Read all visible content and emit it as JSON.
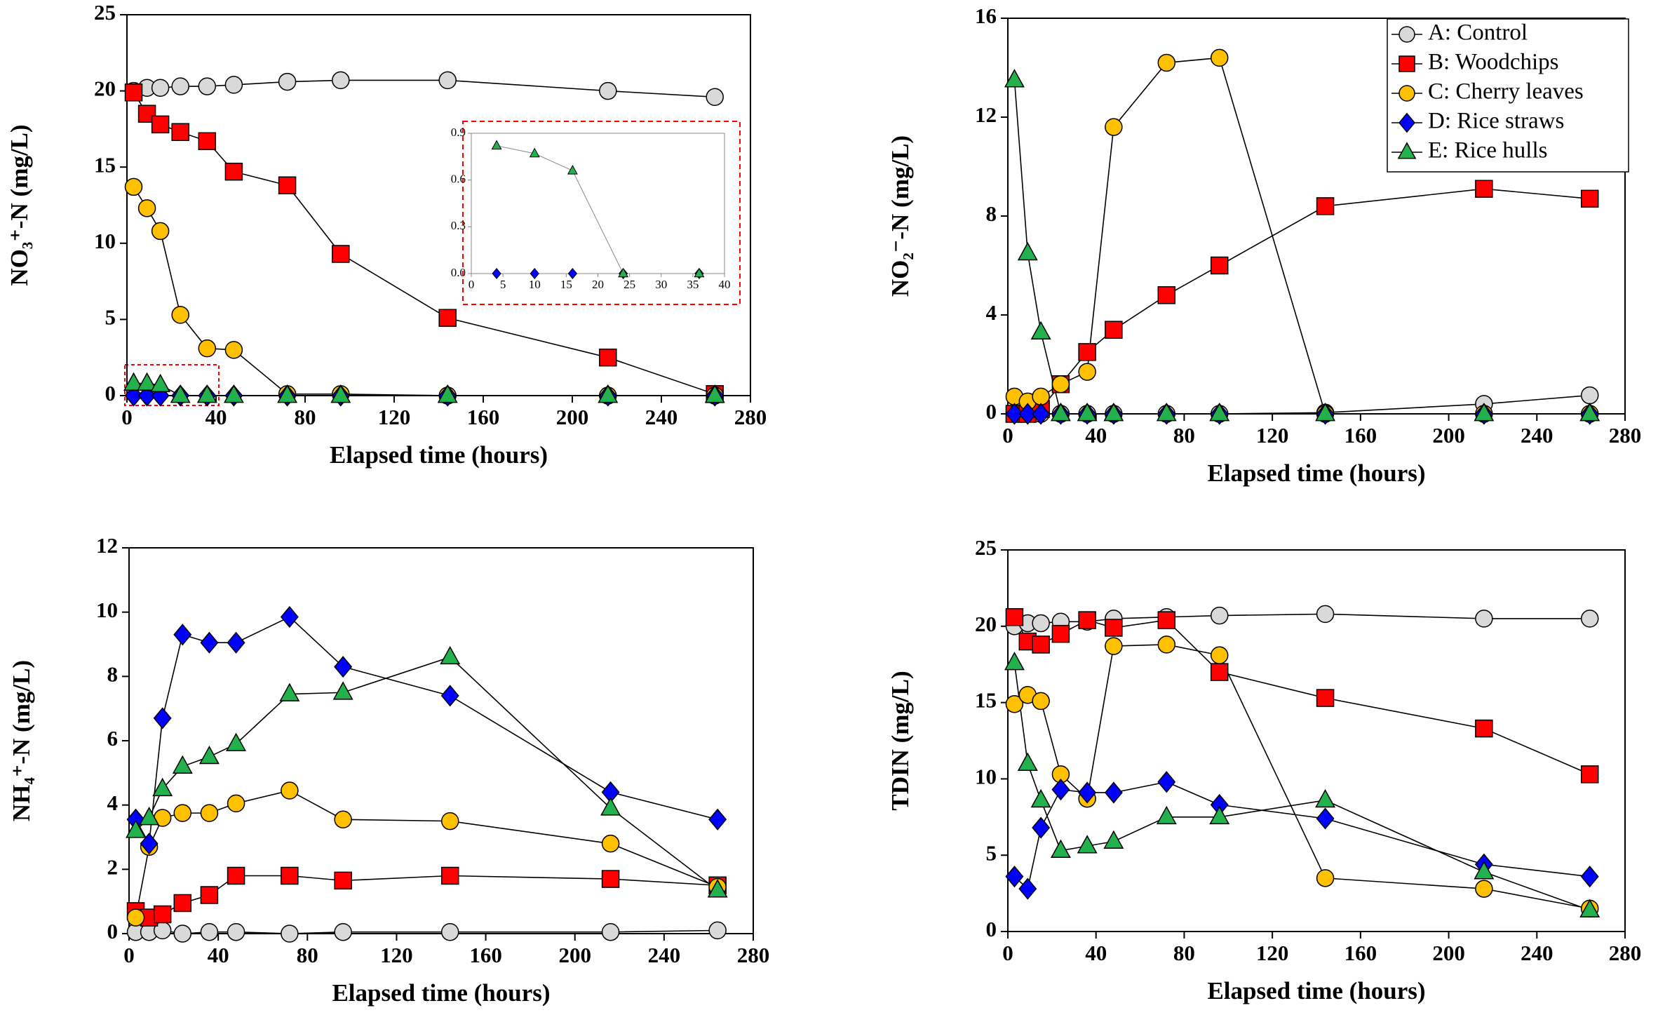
{
  "chart_data": [
    {
      "type": "line",
      "x_label": "Elapsed time (hours)",
      "y_label": "NO₃⁺-N (mg/L)",
      "x": [
        3,
        9,
        15,
        24,
        36,
        48,
        72,
        96,
        144,
        216,
        264
      ],
      "xlim": [
        0,
        280
      ],
      "xticks": [
        0,
        40,
        80,
        120,
        160,
        200,
        240,
        280
      ],
      "ylim": [
        0,
        25
      ],
      "yticks": [
        0,
        5,
        10,
        15,
        20,
        25
      ],
      "series": [
        {
          "color": "#d9d9d9",
          "marker": "circle",
          "values": [
            20.0,
            20.2,
            20.2,
            20.3,
            20.3,
            20.4,
            20.6,
            20.7,
            20.7,
            20.0,
            19.6
          ]
        },
        {
          "color": "#ff0000",
          "marker": "square",
          "values": [
            19.9,
            18.5,
            17.8,
            17.3,
            16.7,
            14.7,
            13.8,
            9.3,
            5.1,
            2.5,
            0.1
          ]
        },
        {
          "color": "#ffc000",
          "marker": "circle",
          "values": [
            13.7,
            12.3,
            10.8,
            5.3,
            3.1,
            3.0,
            0.1,
            0.1,
            0,
            0,
            0
          ]
        },
        {
          "color": "#0000ff",
          "marker": "diamond",
          "values": [
            0,
            0,
            0,
            0,
            0,
            0,
            0,
            0,
            0,
            0,
            0
          ]
        },
        {
          "color": "#22b14c",
          "marker": "triangle",
          "values": [
            0.8,
            0.8,
            0.7,
            0,
            0,
            0,
            0,
            0,
            0,
            0,
            0
          ]
        }
      ]
    },
    {
      "type": "line",
      "x_label": "Elapsed time (hours)",
      "y_label": "NO₂⁻-N (mg/L)",
      "legend": "upper right",
      "x": [
        3,
        9,
        15,
        24,
        36,
        48,
        72,
        96,
        144,
        216,
        264
      ],
      "xlim": [
        0,
        280
      ],
      "xticks": [
        0,
        40,
        80,
        120,
        160,
        200,
        240,
        280
      ],
      "ylim": [
        0,
        16
      ],
      "yticks": [
        0,
        4,
        8,
        12,
        16
      ],
      "series": [
        {
          "name": "A: Control",
          "color": "#d9d9d9",
          "marker": "circle",
          "values": [
            0,
            0,
            0,
            0,
            0,
            0,
            0,
            0,
            0.05,
            0.4,
            0.75
          ]
        },
        {
          "name": "B: Woodchips",
          "color": "#ff0000",
          "marker": "square",
          "values": [
            0,
            0,
            0.2,
            1.2,
            2.5,
            3.4,
            4.8,
            6.0,
            8.4,
            9.1,
            8.7
          ]
        },
        {
          "name": "C: Cherry leaves",
          "color": "#ffc000",
          "marker": "circle",
          "values": [
            0.7,
            0.5,
            0.7,
            1.2,
            1.7,
            11.6,
            14.2,
            14.4,
            0,
            0,
            0
          ]
        },
        {
          "name": "D: Rice straws",
          "color": "#0000ff",
          "marker": "diamond",
          "values": [
            0,
            0,
            0,
            0,
            0,
            0,
            0,
            0,
            0,
            0,
            0
          ]
        },
        {
          "name": "E: Rice hulls",
          "color": "#22b14c",
          "marker": "triangle",
          "values": [
            13.5,
            6.5,
            3.3,
            0,
            0,
            0,
            0,
            0,
            0,
            0,
            0
          ]
        }
      ]
    },
    {
      "type": "line",
      "x_label": "Elapsed time (hours)",
      "y_label": "NH₄⁺-N (mg/L)",
      "x": [
        3,
        9,
        15,
        24,
        36,
        48,
        72,
        96,
        144,
        216,
        264
      ],
      "xlim": [
        0,
        280
      ],
      "xticks": [
        0,
        40,
        80,
        120,
        160,
        200,
        240,
        280
      ],
      "ylim": [
        0,
        12
      ],
      "yticks": [
        0,
        2,
        4,
        6,
        8,
        10,
        12
      ],
      "series": [
        {
          "color": "#d9d9d9",
          "marker": "circle",
          "values": [
            0.05,
            0.05,
            0.1,
            0,
            0.05,
            0.05,
            0,
            0.05,
            0.05,
            0.05,
            0.1
          ]
        },
        {
          "color": "#ff0000",
          "marker": "square",
          "values": [
            0.7,
            0.5,
            0.6,
            0.95,
            1.2,
            1.8,
            1.8,
            1.65,
            1.8,
            1.7,
            1.5
          ]
        },
        {
          "color": "#ffc000",
          "marker": "circle",
          "values": [
            0.5,
            2.7,
            3.6,
            3.75,
            3.75,
            4.05,
            4.45,
            3.55,
            3.5,
            2.8,
            1.45
          ]
        },
        {
          "color": "#0000ff",
          "marker": "diamond",
          "values": [
            3.55,
            2.8,
            6.7,
            9.3,
            9.05,
            9.05,
            9.85,
            8.3,
            7.4,
            4.4,
            3.55
          ]
        },
        {
          "color": "#22b14c",
          "marker": "triangle",
          "values": [
            3.2,
            3.6,
            4.5,
            5.2,
            5.5,
            5.9,
            7.45,
            7.5,
            8.6,
            3.9,
            1.35
          ]
        }
      ]
    },
    {
      "type": "line",
      "x_label": "Elapsed time (hours)",
      "y_label": "TDIN (mg/L)",
      "x": [
        3,
        9,
        15,
        24,
        36,
        48,
        72,
        96,
        144,
        216,
        264
      ],
      "xlim": [
        0,
        280
      ],
      "xticks": [
        0,
        40,
        80,
        120,
        160,
        200,
        240,
        280
      ],
      "ylim": [
        0,
        25
      ],
      "yticks": [
        0,
        5,
        10,
        15,
        20,
        25
      ],
      "series": [
        {
          "color": "#d9d9d9",
          "marker": "circle",
          "values": [
            20.0,
            20.2,
            20.2,
            20.3,
            20.3,
            20.5,
            20.6,
            20.7,
            20.8,
            20.5,
            20.5
          ]
        },
        {
          "color": "#ff0000",
          "marker": "square",
          "values": [
            20.6,
            19.0,
            18.8,
            19.5,
            20.4,
            19.9,
            20.4,
            17.0,
            15.3,
            13.3,
            10.3
          ]
        },
        {
          "color": "#ffc000",
          "marker": "circle",
          "values": [
            14.9,
            15.5,
            15.1,
            10.3,
            8.7,
            18.7,
            18.8,
            18.1,
            3.5,
            2.8,
            1.5
          ]
        },
        {
          "color": "#0000ff",
          "marker": "diamond",
          "values": [
            3.6,
            2.8,
            6.8,
            9.3,
            9.1,
            9.1,
            9.8,
            8.3,
            7.4,
            4.4,
            3.6
          ]
        },
        {
          "color": "#22b14c",
          "marker": "triangle",
          "values": [
            17.6,
            11.0,
            8.6,
            5.3,
            5.6,
            5.9,
            7.5,
            7.5,
            8.6,
            3.9,
            1.4
          ]
        }
      ]
    },
    {
      "type": "line",
      "x": [
        4,
        10,
        16,
        24,
        36
      ],
      "xlim": [
        0,
        40
      ],
      "xticks": [
        0,
        5,
        10,
        15,
        20,
        25,
        30,
        35,
        40
      ],
      "ylim": [
        0,
        0.9
      ],
      "yticks": [
        {
          "value": 0,
          "label": "0.0"
        },
        0.3,
        0.6,
        0.9
      ],
      "series": [
        {
          "color": "#0000ff",
          "marker": "diamond",
          "values": [
            0,
            0,
            0,
            0,
            0
          ]
        },
        {
          "color": "#22b14c",
          "marker": "triangle",
          "values": [
            0.82,
            0.77,
            0.66,
            0,
            0
          ]
        }
      ]
    }
  ]
}
